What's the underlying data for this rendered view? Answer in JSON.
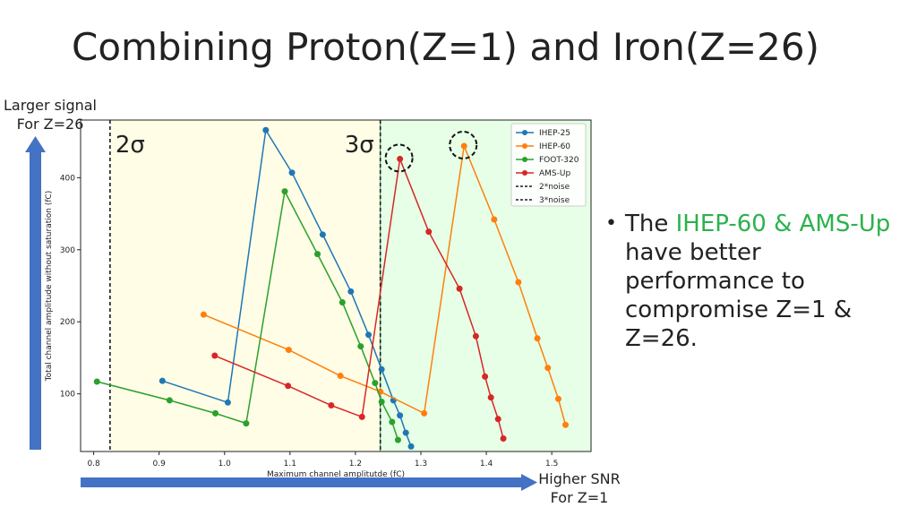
{
  "slide": {
    "title": "Combining Proton(Z=1) and Iron(Z=26)",
    "left_arrow_label": [
      "Larger signal",
      "For Z=26"
    ],
    "bottom_arrow_label": [
      "Higher SNR",
      "For Z=1"
    ],
    "bullet": {
      "prefix": "The ",
      "highlight": "IHEP-60 & AMS-Up",
      "suffix": " have better performance to compromise Z=1 & Z=26."
    },
    "colors": {
      "highlight": "#2bb24c",
      "arrow": "#4472c4"
    }
  },
  "chart_data": {
    "type": "line",
    "xlabel": "Maximum channel amplitutde (fC)",
    "ylabel": "Total channel amplitude without saturation (fC)",
    "xlim": [
      0.78,
      1.56
    ],
    "ylim": [
      20,
      480
    ],
    "xticks": [
      0.8,
      0.9,
      1.0,
      1.1,
      1.2,
      1.3,
      1.4,
      1.5
    ],
    "yticks": [
      100,
      200,
      300,
      400
    ],
    "legend_position": "top-right",
    "thresholds": [
      {
        "name": "2*noise",
        "label": "2σ",
        "x": 0.825,
        "region_color": "#fffde6"
      },
      {
        "name": "3*noise",
        "label": "3σ",
        "x": 1.238,
        "region_color": "#e6ffe6"
      }
    ],
    "series": [
      {
        "name": "IHEP-25",
        "color": "#1f77b4",
        "x": [
          0.905,
          1.005,
          1.063,
          1.103,
          1.15,
          1.193,
          1.22,
          1.24,
          1.258,
          1.268,
          1.277,
          1.285
        ],
        "y": [
          118,
          88,
          466,
          407,
          321,
          242,
          182,
          134,
          91,
          70,
          46,
          27
        ]
      },
      {
        "name": "IHEP-60",
        "color": "#ff7f0e",
        "x": [
          0.968,
          1.098,
          1.177,
          1.238,
          1.305,
          1.366,
          1.412,
          1.449,
          1.478,
          1.494,
          1.51,
          1.521
        ],
        "y": [
          210,
          161,
          125,
          103,
          73,
          444,
          342,
          255,
          177,
          136,
          93,
          57
        ]
      },
      {
        "name": "FOOT-320",
        "color": "#2ca02c",
        "x": [
          0.805,
          0.916,
          0.986,
          1.033,
          1.092,
          1.142,
          1.18,
          1.208,
          1.23,
          1.24,
          1.256,
          1.265
        ],
        "y": [
          117,
          91,
          73,
          59,
          381,
          294,
          227,
          166,
          115,
          89,
          61,
          36
        ]
      },
      {
        "name": "AMS-Up",
        "color": "#d62728",
        "x": [
          0.985,
          1.097,
          1.163,
          1.21,
          1.268,
          1.312,
          1.359,
          1.384,
          1.398,
          1.407,
          1.418,
          1.426
        ],
        "y": [
          153,
          111,
          84,
          68,
          426,
          325,
          246,
          180,
          124,
          95,
          65,
          38
        ]
      }
    ],
    "circled_points": [
      {
        "x": 1.268,
        "y": 426
      },
      {
        "x": 1.366,
        "y": 444
      }
    ]
  }
}
